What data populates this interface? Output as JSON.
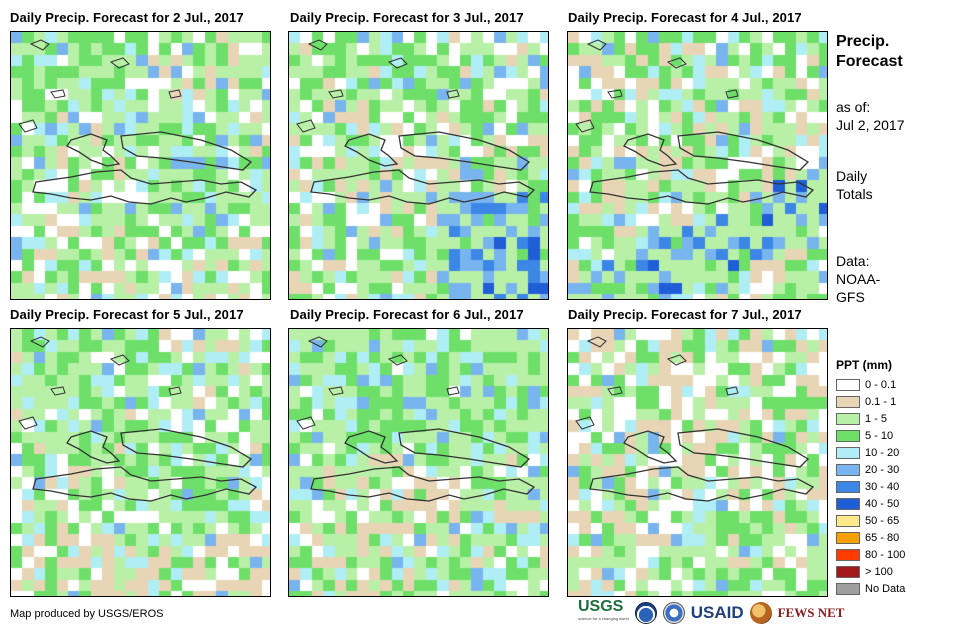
{
  "panels": [
    {
      "title": "Daily Precip. Forecast for 2 Jul., 2017",
      "pattern": "mixed-moist"
    },
    {
      "title": "Daily Precip. Forecast for 3 Jul., 2017",
      "pattern": "southeast-wet"
    },
    {
      "title": "Daily Precip. Forecast for 4 Jul., 2017",
      "pattern": "south-band"
    },
    {
      "title": "Daily Precip. Forecast for 5 Jul., 2017",
      "pattern": "mixed-moist"
    },
    {
      "title": "Daily Precip. Forecast for 6 Jul., 2017",
      "pattern": "north-wet"
    },
    {
      "title": "Daily Precip. Forecast for 7 Jul., 2017",
      "pattern": "mostly-dry"
    }
  ],
  "side": {
    "title_line1": "Precip.",
    "title_line2": "Forecast",
    "asof_label": "as of:",
    "asof_date": "Jul 2, 2017",
    "totals_line1": "Daily",
    "totals_line2": "Totals",
    "data_label": "Data:",
    "data_line2": "NOAA-",
    "data_line3": "GFS"
  },
  "legend": {
    "title": "PPT (mm)",
    "items": [
      {
        "label": "0 - 0.1",
        "color": "#ffffff"
      },
      {
        "label": "0.1 - 1",
        "color": "#e8d5b5"
      },
      {
        "label": "1 - 5",
        "color": "#b9f0a8"
      },
      {
        "label": "5 - 10",
        "color": "#6ee06a"
      },
      {
        "label": "10 - 20",
        "color": "#b0eef5"
      },
      {
        "label": "20 - 30",
        "color": "#78b4ee"
      },
      {
        "label": "30 - 40",
        "color": "#3c86e6"
      },
      {
        "label": "40 - 50",
        "color": "#1f5ed6"
      },
      {
        "label": "50 - 65",
        "color": "#fde88a"
      },
      {
        "label": "65 - 80",
        "color": "#f7a000"
      },
      {
        "label": "80 - 100",
        "color": "#ff3c00"
      },
      {
        "label": "> 100",
        "color": "#a31818"
      },
      {
        "label": "No Data",
        "color": "#9e9e9e"
      }
    ]
  },
  "footer": {
    "credit": "Map produced by USGS/EROS",
    "logo_usgs": "USGS",
    "logo_usgs_tag": "science for a changing world",
    "logo_usaid": "USAID",
    "logo_fews": "FEWS NET"
  }
}
